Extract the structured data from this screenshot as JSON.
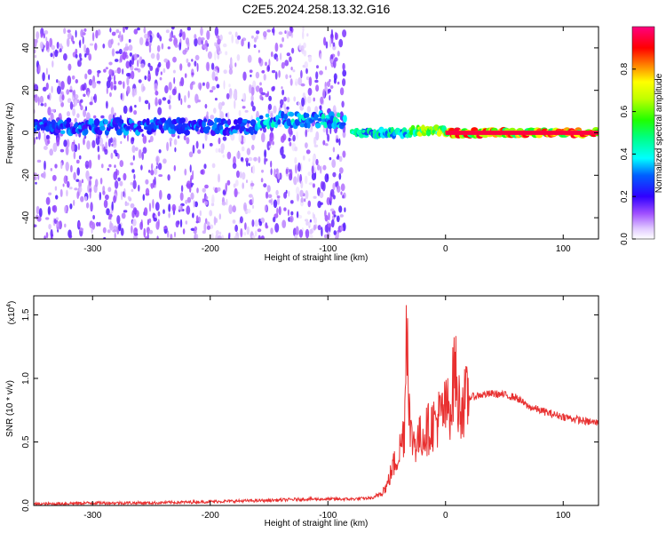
{
  "title": "C2E5.2024.258.13.32.G16",
  "chart_data": [
    {
      "type": "heatmap",
      "xlabel": "Height of straight line (km)",
      "ylabel": "Frequency (Hz)",
      "xlim": [
        -350,
        130
      ],
      "ylim": [
        -50,
        50
      ],
      "xticks": [
        -300,
        -200,
        -100,
        0,
        100
      ],
      "yticks": [
        -40,
        -20,
        0,
        20,
        40
      ],
      "colorbar": {
        "label": "Normalized spectral amplitude",
        "range": [
          0,
          1
        ],
        "ticks": [
          0.0,
          0.2,
          0.4,
          0.6,
          0.8
        ]
      },
      "ridge": {
        "note_x_start": -85,
        "segments": [
          {
            "x": [
              -350,
              -160
            ],
            "center_hz": 3,
            "peak_amp": 0.35
          },
          {
            "x": [
              -160,
              -85
            ],
            "center_hz": 6,
            "peak_amp": 0.45
          },
          {
            "x": [
              -80,
              -30
            ],
            "center_hz": 0,
            "peak_amp": 0.5
          },
          {
            "x": [
              -30,
              0
            ],
            "center_hz": 1,
            "peak_amp": 0.75
          },
          {
            "x": [
              0,
              130
            ],
            "center_hz": 0,
            "peak_amp": 0.95
          }
        ]
      }
    },
    {
      "type": "line",
      "xlabel": "Height of straight line (km)",
      "ylabel": "SNR (10 * v/v)",
      "multiplier_label": "(x10",
      "multiplier_exp": "4",
      "multiplier_close": ")",
      "xlim": [
        -350,
        130
      ],
      "ylim": [
        0,
        1.65
      ],
      "xticks": [
        -300,
        -200,
        -100,
        0,
        100
      ],
      "yticks": [
        0.0,
        0.5,
        1.0,
        1.5
      ],
      "series": [
        {
          "color": "#e83030",
          "x": [
            -350,
            -300,
            -250,
            -200,
            -150,
            -120,
            -100,
            -80,
            -60,
            -50,
            -45,
            -40,
            -35,
            -33,
            -30,
            -25,
            -20,
            -15,
            -10,
            -5,
            0,
            5,
            8,
            10,
            15,
            20,
            30,
            40,
            50,
            60,
            70,
            80,
            90,
            100,
            110,
            120,
            130
          ],
          "y": [
            0.01,
            0.02,
            0.02,
            0.03,
            0.04,
            0.05,
            0.05,
            0.05,
            0.06,
            0.15,
            0.3,
            0.4,
            0.6,
            1.6,
            0.55,
            0.5,
            0.55,
            0.6,
            0.65,
            0.7,
            0.75,
            0.8,
            1.15,
            0.8,
            0.8,
            0.85,
            0.87,
            0.88,
            0.87,
            0.85,
            0.78,
            0.75,
            0.72,
            0.7,
            0.68,
            0.66,
            0.65
          ]
        }
      ]
    }
  ]
}
